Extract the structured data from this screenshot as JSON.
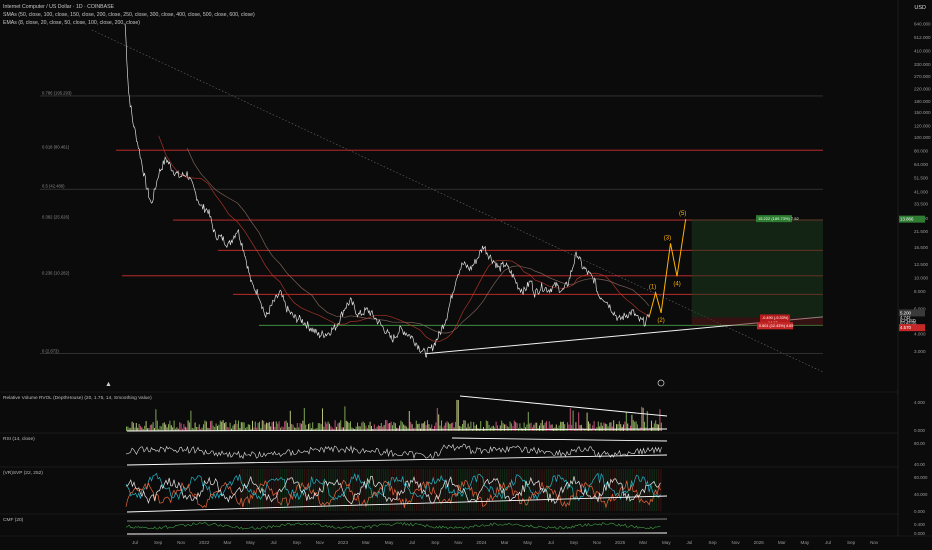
{
  "header": {
    "title": "Internet Computer / US Dollar · 1D · COINBASE",
    "smas": "SMAs (50, close, 100, close, 150, close, 200, close, 250, close, 300, close, 400, close, 500, close, 600, close)",
    "emas": "EMAs (8, close, 20, close, 50, close, 100, close, 200, close)",
    "currency": "USD"
  },
  "chart_data": {
    "type": "line",
    "price_axis_labels": [
      "640.000",
      "512.000",
      "410.000",
      "330.000",
      "270.000",
      "220.000",
      "180.000",
      "150.000",
      "120.000",
      "100.000",
      "80.000",
      "64.000",
      "51.500",
      "41.000",
      "33.500",
      "26.500",
      "21.500",
      "16.500",
      "12.500",
      "10.000",
      "8.000",
      "6.000",
      "4.000",
      "3.000"
    ],
    "price_tags": [
      {
        "label": "13.866",
        "color": "#2e7d32"
      },
      {
        "label": "5.200",
        "color": "#3a3a3a"
      },
      {
        "label": "4.742",
        "color": "#e8e8e8"
      },
      {
        "label": "ICPUSD",
        "color": "#e8e8e8"
      },
      {
        "label": "03:43:05",
        "color": "#e8e8e8"
      },
      {
        "label": "4.570",
        "color": "#c62828"
      }
    ],
    "fib_levels": [
      {
        "label": "0.786 (195.293)",
        "price": 195.3,
        "color": "#555555"
      },
      {
        "label": "0.618 (80.461)",
        "price": 80.46,
        "color": "#d32f2f"
      },
      {
        "label": "0.5 (42.489)",
        "price": 42.49,
        "color": "#555555"
      },
      {
        "label": "0.382 (25.626)",
        "price": 25.63,
        "color": "#d32f2f"
      },
      {
        "label": "",
        "price": 15.6,
        "color": "#d32f2f"
      },
      {
        "label": "0.236 (10.282)",
        "price": 10.28,
        "color": "#d32f2f"
      },
      {
        "label": "",
        "price": 7.6,
        "color": "#d32f2f"
      },
      {
        "label": "0 (2.873)",
        "price": 2.87,
        "color": "#555555"
      }
    ],
    "support_level": 4.57,
    "time_axis_labels": [
      "Jul",
      "Sep",
      "Nov",
      "2022",
      "Mar",
      "May",
      "Jul",
      "Sep",
      "Nov",
      "2023",
      "Mar",
      "May",
      "Jul",
      "Sep",
      "Nov",
      "2024",
      "Mar",
      "May",
      "Jul",
      "Sep",
      "Nov",
      "2025",
      "Mar",
      "May",
      "Jul",
      "Sep",
      "Nov",
      "2026",
      "Mar",
      "May",
      "Jul",
      "Sep",
      "Nov"
    ],
    "price_series": [
      {
        "date": "2021-05-10",
        "v": 640
      },
      {
        "date": "2021-05-20",
        "v": 210
      },
      {
        "date": "2021-06-01",
        "v": 130
      },
      {
        "date": "2021-06-20",
        "v": 80
      },
      {
        "date": "2021-07-10",
        "v": 45
      },
      {
        "date": "2021-07-25",
        "v": 33
      },
      {
        "date": "2021-08-15",
        "v": 55
      },
      {
        "date": "2021-09-05",
        "v": 70
      },
      {
        "date": "2021-09-25",
        "v": 58
      },
      {
        "date": "2021-10-15",
        "v": 52
      },
      {
        "date": "2021-11-05",
        "v": 55
      },
      {
        "date": "2021-11-25",
        "v": 42
      },
      {
        "date": "2021-12-15",
        "v": 32
      },
      {
        "date": "2022-01-05",
        "v": 30
      },
      {
        "date": "2022-01-25",
        "v": 20
      },
      {
        "date": "2022-02-15",
        "v": 19
      },
      {
        "date": "2022-03-05",
        "v": 17
      },
      {
        "date": "2022-03-31",
        "v": 22
      },
      {
        "date": "2022-04-20",
        "v": 15
      },
      {
        "date": "2022-05-10",
        "v": 9
      },
      {
        "date": "2022-06-01",
        "v": 7.5
      },
      {
        "date": "2022-06-20",
        "v": 5.2
      },
      {
        "date": "2022-07-10",
        "v": 6.5
      },
      {
        "date": "2022-08-01",
        "v": 7.8
      },
      {
        "date": "2022-08-20",
        "v": 6.0
      },
      {
        "date": "2022-09-10",
        "v": 5.2
      },
      {
        "date": "2022-10-01",
        "v": 5.0
      },
      {
        "date": "2022-11-01",
        "v": 4.3
      },
      {
        "date": "2022-11-20",
        "v": 3.9
      },
      {
        "date": "2022-12-15",
        "v": 4.0
      },
      {
        "date": "2023-01-10",
        "v": 4.5
      },
      {
        "date": "2023-02-05",
        "v": 6.2
      },
      {
        "date": "2023-02-20",
        "v": 6.8
      },
      {
        "date": "2023-03-15",
        "v": 5.4
      },
      {
        "date": "2023-04-10",
        "v": 5.9
      },
      {
        "date": "2023-05-01",
        "v": 5.2
      },
      {
        "date": "2023-06-01",
        "v": 4.2
      },
      {
        "date": "2023-06-20",
        "v": 3.6
      },
      {
        "date": "2023-07-15",
        "v": 4.3
      },
      {
        "date": "2023-08-15",
        "v": 3.8
      },
      {
        "date": "2023-09-10",
        "v": 3.1
      },
      {
        "date": "2023-09-25",
        "v": 2.87
      },
      {
        "date": "2023-10-15",
        "v": 3.2
      },
      {
        "date": "2023-11-05",
        "v": 4.0
      },
      {
        "date": "2023-11-25",
        "v": 5.3
      },
      {
        "date": "2023-12-10",
        "v": 7.5
      },
      {
        "date": "2023-12-25",
        "v": 10.5
      },
      {
        "date": "2024-01-10",
        "v": 12.5
      },
      {
        "date": "2024-02-01",
        "v": 11.5
      },
      {
        "date": "2024-02-20",
        "v": 13.5
      },
      {
        "date": "2024-03-10",
        "v": 16.8
      },
      {
        "date": "2024-03-25",
        "v": 14.5
      },
      {
        "date": "2024-04-10",
        "v": 13.0
      },
      {
        "date": "2024-04-25",
        "v": 11.5
      },
      {
        "date": "2024-05-10",
        "v": 12.5
      },
      {
        "date": "2024-06-01",
        "v": 10.5
      },
      {
        "date": "2024-06-20",
        "v": 8.5
      },
      {
        "date": "2024-07-05",
        "v": 8.0
      },
      {
        "date": "2024-07-25",
        "v": 9.5
      },
      {
        "date": "2024-08-05",
        "v": 7.7
      },
      {
        "date": "2024-08-25",
        "v": 8.6
      },
      {
        "date": "2024-09-15",
        "v": 8.2
      },
      {
        "date": "2024-10-05",
        "v": 8.8
      },
      {
        "date": "2024-10-25",
        "v": 8.0
      },
      {
        "date": "2024-11-10",
        "v": 9.2
      },
      {
        "date": "2024-11-25",
        "v": 12.5
      },
      {
        "date": "2024-12-05",
        "v": 15.0
      },
      {
        "date": "2024-12-20",
        "v": 12.0
      },
      {
        "date": "2025-01-10",
        "v": 10.5
      },
      {
        "date": "2025-01-25",
        "v": 9.5
      },
      {
        "date": "2025-02-05",
        "v": 7.5
      },
      {
        "date": "2025-02-25",
        "v": 7.0
      },
      {
        "date": "2025-03-15",
        "v": 6.0
      },
      {
        "date": "2025-04-05",
        "v": 5.0
      },
      {
        "date": "2025-04-25",
        "v": 5.4
      },
      {
        "date": "2025-05-15",
        "v": 5.7
      },
      {
        "date": "2025-06-01",
        "v": 5.0
      },
      {
        "date": "2025-06-20",
        "v": 4.8
      },
      {
        "date": "2025-07-01",
        "v": 5.2
      }
    ],
    "wave_projection": [
      {
        "date": "2025-07-01",
        "v": 5.2,
        "label": ""
      },
      {
        "date": "2025-07-20",
        "v": 7.8,
        "label": "(1)"
      },
      {
        "date": "2025-08-05",
        "v": 5.6,
        "label": "(2)"
      },
      {
        "date": "2025-09-01",
        "v": 17.5,
        "label": "(3)"
      },
      {
        "date": "2025-09-20",
        "v": 10.2,
        "label": "(4)"
      },
      {
        "date": "2025-10-15",
        "v": 26.0,
        "label": "(5)"
      }
    ],
    "position_box": {
      "target_label": "15.222 (189.73%) 7.52",
      "stop_label_1": "-0.490 (-9.33%)",
      "stop_label_2": "14.17",
      "entry_label": "0.601 (12.43%) 4.65"
    },
    "panels": [
      {
        "title": "Relative Volume RVOL (DepthHouse) (20, 1.75, 14, Smoothing Value)",
        "axis": [
          "4.000",
          "0.000"
        ]
      },
      {
        "title": "RSI (14, close)",
        "axis": [
          "80.00",
          "40.00"
        ]
      },
      {
        "title": "(VR)SVP (22, 252)",
        "axis": [
          "80.000",
          "40.000",
          "0.000"
        ]
      },
      {
        "title": "CMF (20)",
        "axis": [
          "0.400",
          "0.000"
        ]
      }
    ]
  }
}
